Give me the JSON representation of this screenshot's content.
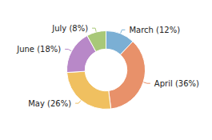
{
  "chart_data": {
    "type": "donut",
    "categories": [
      "March",
      "April",
      "May",
      "June",
      "July"
    ],
    "values": [
      12,
      36,
      26,
      18,
      8
    ],
    "value_labels": [
      "March (12%)",
      "April (36%)",
      "May (26%)",
      "June (18%)",
      "July (8%)"
    ],
    "colors": [
      "#7bafd4",
      "#e8916a",
      "#f0c060",
      "#b888c8",
      "#a8c878"
    ],
    "data_labels": true
  }
}
